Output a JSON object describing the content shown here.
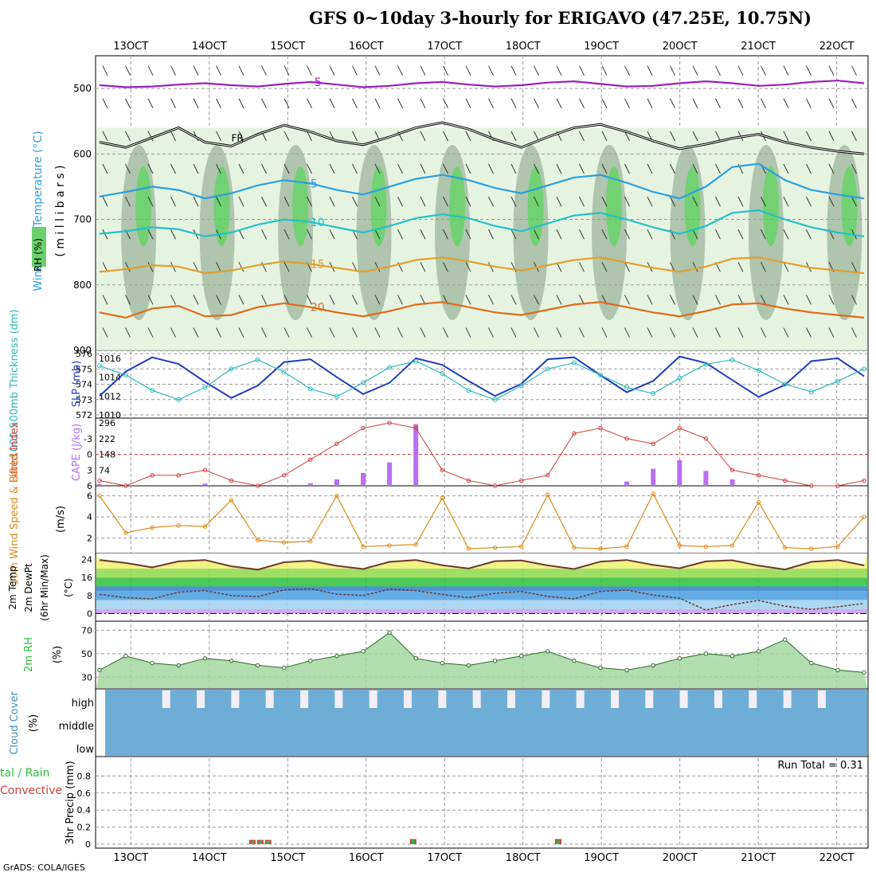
{
  "title": "GFS 0~10day 3-hourly for ERIGAVO (47.25E, 10.75N)",
  "credit": "GrADS: COLA/IGES",
  "dates": [
    "13OCT",
    "14OCT",
    "15OCT",
    "16OCT",
    "17OCT",
    "18OCT",
    "19OCT",
    "20OCT",
    "21OCT",
    "22OCT"
  ],
  "colors": {
    "rh_light": "#e6f3e1",
    "rh_mid": "#9cb59c",
    "rh_high": "#6cd16c",
    "temp_m5": "#9b1fbf",
    "temp_5": "#2aa0e0",
    "temp_10": "#22c2c8",
    "temp_15": "#e0a030",
    "temp_20": "#e06a1a",
    "slp": "#1f3dbf",
    "thick": "#2ab8c0",
    "cape": "#b870f0",
    "li": "#d04040",
    "wind": "#e08a1a",
    "cloud": "#6eaed6",
    "rh2m": "#2bbf3a"
  },
  "chart_data": [
    {
      "panel": "upper-air",
      "type": "contour",
      "ylabel_segments": [
        "Wind (m/s)",
        "Temperature (°C)"
      ],
      "ylabel_2": "( m i l l i b a r s )",
      "rh_label": "RH (%)",
      "yticks": [
        500,
        600,
        700,
        800,
        900
      ],
      "ylim": [
        450,
        900
      ],
      "isotherms": [
        {
          "label": "-5",
          "level": [
            495,
            498,
            497,
            494,
            492,
            495,
            497,
            493,
            490,
            494,
            498,
            496,
            492,
            490,
            494,
            497,
            495,
            491,
            489,
            493,
            497,
            496,
            492,
            489,
            492,
            496,
            494,
            490,
            488,
            492
          ]
        },
        {
          "label": "5",
          "level": [
            665,
            658,
            650,
            655,
            668,
            660,
            648,
            640,
            645,
            655,
            662,
            650,
            638,
            632,
            640,
            652,
            660,
            648,
            636,
            632,
            644,
            658,
            668,
            650,
            620,
            615,
            640,
            655,
            662,
            668
          ]
        },
        {
          "label": "10",
          "level": [
            722,
            718,
            712,
            715,
            726,
            720,
            708,
            700,
            704,
            712,
            720,
            710,
            698,
            692,
            698,
            710,
            718,
            706,
            694,
            690,
            700,
            712,
            722,
            710,
            690,
            686,
            700,
            712,
            720,
            726
          ]
        },
        {
          "label": "15",
          "level": [
            780,
            776,
            770,
            772,
            782,
            778,
            770,
            764,
            768,
            774,
            780,
            772,
            762,
            758,
            764,
            772,
            778,
            770,
            762,
            758,
            766,
            774,
            780,
            772,
            760,
            758,
            766,
            774,
            778,
            782
          ]
        },
        {
          "label": "20",
          "level": [
            842,
            850,
            836,
            832,
            848,
            846,
            834,
            828,
            834,
            842,
            848,
            840,
            830,
            826,
            834,
            842,
            846,
            838,
            830,
            826,
            834,
            842,
            848,
            840,
            830,
            828,
            836,
            842,
            846,
            850
          ]
        }
      ],
      "freezing_level": [
        582,
        590,
        575,
        560,
        582,
        588,
        570,
        556,
        566,
        580,
        586,
        574,
        560,
        552,
        562,
        578,
        590,
        574,
        560,
        555,
        566,
        580,
        592,
        585,
        576,
        570,
        582,
        590,
        596,
        600
      ],
      "freezing_label": "FR"
    },
    {
      "panel": "slp-thickness",
      "type": "line",
      "ylabel_left": "1000-500mb Thickness (dm)",
      "ylabel_right": "SLP (mb)",
      "left_ticks": [
        572,
        573,
        574,
        575,
        576
      ],
      "right_ticks": [
        1010,
        1012,
        1014,
        1016
      ],
      "series": [
        {
          "name": "SLP",
          "axis": "right",
          "values": [
            1012.0,
            1014.6,
            1016.1,
            1015.4,
            1013.5,
            1011.8,
            1013.1,
            1015.6,
            1015.9,
            1014.0,
            1012.2,
            1013.4,
            1016.0,
            1015.3,
            1013.6,
            1012.0,
            1013.3,
            1015.9,
            1016.1,
            1014.2,
            1012.4,
            1013.6,
            1016.2,
            1015.5,
            1013.7,
            1011.9,
            1013.2,
            1015.7,
            1016.0,
            1014.1
          ]
        },
        {
          "name": "Thickness",
          "axis": "left",
          "values": [
            575.2,
            574.6,
            573.6,
            573.0,
            573.8,
            575.0,
            575.6,
            574.8,
            573.7,
            573.2,
            574.1,
            575.1,
            575.5,
            574.7,
            573.6,
            573.0,
            573.9,
            575.0,
            575.4,
            574.6,
            573.8,
            573.4,
            574.4,
            575.3,
            575.6,
            574.9,
            574.0,
            573.5,
            574.2,
            575.0
          ]
        }
      ]
    },
    {
      "panel": "cape-li",
      "type": "bar+line",
      "ylabel_left": "Lifted Index",
      "ylabel_right": "CAPE (J/kg)",
      "li_ticks": [
        -3,
        0,
        3,
        6
      ],
      "cape_ticks": [
        74,
        148,
        222,
        296
      ],
      "cape": [
        8,
        0,
        0,
        0,
        10,
        0,
        0,
        0,
        12,
        30,
        60,
        110,
        290,
        0,
        0,
        0,
        0,
        0,
        0,
        0,
        20,
        80,
        120,
        70,
        30,
        0,
        0,
        0,
        0,
        0
      ],
      "li": [
        5,
        6,
        4,
        4,
        3,
        5,
        6,
        4,
        1,
        -2,
        -5,
        -6,
        -5,
        3,
        5,
        6,
        5,
        4,
        -4,
        -5,
        -3,
        -2,
        -5,
        -3,
        3,
        4,
        5,
        6,
        6,
        5
      ]
    },
    {
      "panel": "wind10m",
      "type": "line",
      "ylabel": "10m Wind Speed & Barbs",
      "yunits": "(m/s)",
      "yticks": [
        2,
        4,
        6
      ],
      "values": [
        6.0,
        2.5,
        3.0,
        3.2,
        3.1,
        5.6,
        1.8,
        1.6,
        1.7,
        6.0,
        1.2,
        1.3,
        1.4,
        5.8,
        1.0,
        1.1,
        1.2,
        6.1,
        1.1,
        1.0,
        1.2,
        6.2,
        1.3,
        1.2,
        1.3,
        5.4,
        1.1,
        1.0,
        1.2,
        4.0
      ]
    },
    {
      "panel": "temp2m",
      "type": "area+line",
      "ylabel_1": "2m Temp",
      "ylabel_2": "2m DewPt",
      "ylabel_3": "(6hr Min/Max)",
      "yunits": "(°C)",
      "yticks": [
        0,
        8,
        16,
        24
      ],
      "temp": [
        23.8,
        22.5,
        20.5,
        23.2,
        23.8,
        21.0,
        19.5,
        22.8,
        23.5,
        21.2,
        19.8,
        23.0,
        23.8,
        21.5,
        20.0,
        23.3,
        23.6,
        21.4,
        19.8,
        23.1,
        23.8,
        21.6,
        20.1,
        23.2,
        23.7,
        21.3,
        19.6,
        23.0,
        23.8,
        21.4
      ],
      "dewpt": [
        8.5,
        7.0,
        6.5,
        9.5,
        10.2,
        8.0,
        7.5,
        10.5,
        11.0,
        8.6,
        8.0,
        10.8,
        10.2,
        8.5,
        7.0,
        9.0,
        9.8,
        7.6,
        6.5,
        9.8,
        10.4,
        8.2,
        6.8,
        1.5,
        4.0,
        5.8,
        3.2,
        1.8,
        3.0,
        4.5
      ]
    },
    {
      "panel": "rh2m",
      "type": "area",
      "ylabel": "2m RH",
      "yunits": "(%)",
      "yticks": [
        30,
        50,
        70
      ],
      "values": [
        36,
        48,
        42,
        40,
        46,
        44,
        40,
        38,
        44,
        48,
        52,
        68,
        46,
        42,
        40,
        44,
        48,
        52,
        44,
        38,
        36,
        40,
        46,
        50,
        48,
        52,
        62,
        42,
        36,
        34
      ]
    },
    {
      "panel": "cloud",
      "type": "heatmap",
      "ylabel": "Cloud Cover",
      "yunits": "(%)",
      "levels": [
        "high",
        "middle",
        "low"
      ]
    },
    {
      "panel": "precip",
      "type": "bar",
      "ylabel": "3hr Precip (mm)",
      "left_label_1": "tal / Rain",
      "left_label_2": "Convective",
      "run_total": "Run Total = 0.31",
      "yticks": [
        0,
        0.2,
        0.4,
        0.6,
        0.8
      ],
      "ytick_labels": [
        "0",
        "0.2",
        "0.4",
        "0.6",
        "0.8"
      ],
      "bars": [
        {
          "t": 14.55,
          "value": 0.05
        },
        {
          "t": 14.65,
          "value": 0.05
        },
        {
          "t": 14.75,
          "value": 0.05
        },
        {
          "t": 16.6,
          "value": 0.06
        },
        {
          "t": 18.45,
          "value": 0.06
        }
      ]
    }
  ]
}
